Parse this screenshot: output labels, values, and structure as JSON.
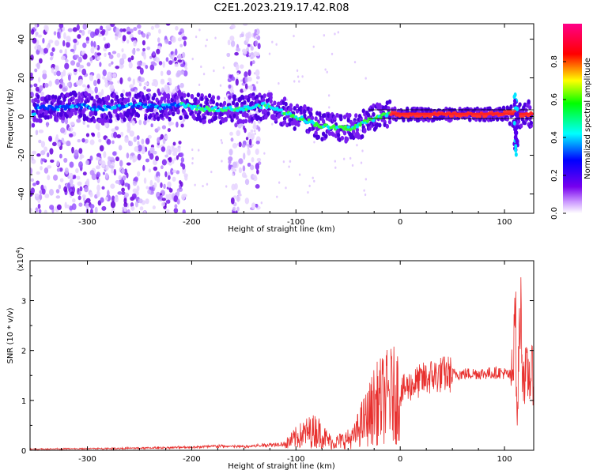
{
  "figure_title": "C2E1.2023.219.17.42.R08",
  "chart_data": [
    {
      "type": "heatmap",
      "title": "",
      "xlabel": "Height of straight line (km)",
      "ylabel": "Frequency (Hz)",
      "xlim": [
        -355,
        128
      ],
      "ylim": [
        -50,
        48
      ],
      "x_ticks": [
        -300,
        -200,
        -100,
        0,
        100
      ],
      "y_ticks": [
        -40,
        -20,
        0,
        20,
        40
      ],
      "colorbar": {
        "label": "Normalized spectral amplitude",
        "range": [
          0,
          1
        ],
        "ticks": [
          0.0,
          0.2,
          0.4,
          0.6,
          0.8
        ],
        "colors": [
          "#ffffff",
          "#cc99ff",
          "#7700ee",
          "#0000ff",
          "#00ffff",
          "#00ff00",
          "#ffff00",
          "#ff0000",
          "#ff0088"
        ]
      },
      "ridge_line": {
        "x": [
          -350,
          -330,
          -310,
          -290,
          -270,
          -250,
          -230,
          -210,
          -190,
          -170,
          -150,
          -130,
          -110,
          -90,
          -75,
          -60,
          -45,
          -35,
          -25,
          -15,
          -5,
          5,
          20,
          50,
          80,
          100,
          108,
          112,
          115,
          128
        ],
        "y": [
          5,
          4,
          6,
          4,
          5,
          6,
          5,
          6,
          4,
          4,
          4,
          6,
          2,
          -2,
          -5,
          -6,
          -6,
          -3,
          -1,
          1,
          1.5,
          1,
          1,
          1,
          1,
          1.5,
          2,
          1,
          1,
          1
        ]
      },
      "noise_bands": [
        [
          -355,
          -205
        ],
        [
          -165,
          -135
        ]
      ]
    },
    {
      "type": "line",
      "title": "",
      "xlabel": "Height of straight line (km)",
      "ylabel": "SNR (10 * v/v)",
      "y_multiplier_label": "(x10",
      "y_multiplier_exponent": "4",
      "y_multiplier_close": ")",
      "xlim": [
        -355,
        128
      ],
      "ylim": [
        0,
        38000
      ],
      "x_ticks": [
        -300,
        -200,
        -100,
        0,
        100
      ],
      "y_ticks": [
        0,
        1,
        2,
        3
      ],
      "series_color": "#e8312f",
      "series": [
        {
          "x": [
            -355,
            -300,
            -250,
            -200,
            -175,
            -150,
            -125,
            -110,
            -100,
            -90,
            -80,
            -72,
            -65,
            -55,
            -45,
            -38,
            -30,
            -25,
            -18,
            -10,
            -5,
            0,
            5,
            10,
            20,
            30,
            40,
            50,
            60,
            70,
            80,
            90,
            95,
            100,
            105,
            108,
            110,
            112,
            115,
            118,
            128
          ],
          "y": [
            100,
            200,
            300,
            500,
            700,
            600,
            1000,
            1200,
            2500,
            3500,
            4000,
            2500,
            1500,
            2000,
            2500,
            5000,
            7000,
            9000,
            10000,
            11000,
            11000,
            11500,
            12500,
            13000,
            14000,
            14800,
            15200,
            15300,
            15300,
            15400,
            15400,
            15500,
            15600,
            15400,
            15000,
            15000,
            37000,
            4000,
            30000,
            15000,
            15000
          ]
        }
      ]
    }
  ]
}
